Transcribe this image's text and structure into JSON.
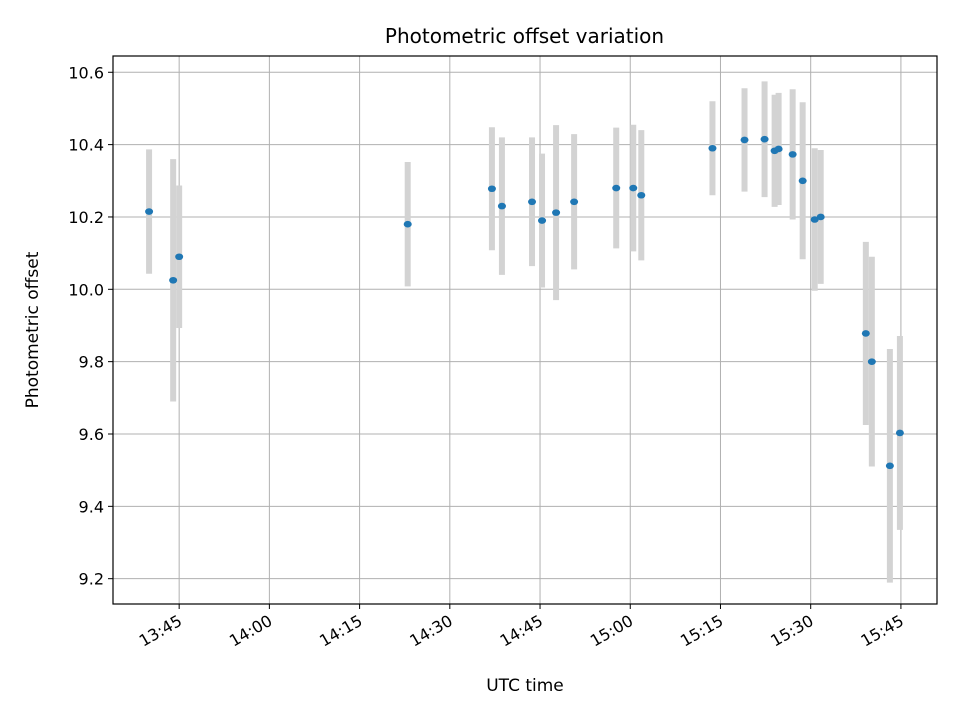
{
  "chart_data": {
    "type": "scatter",
    "title": "Photometric offset variation",
    "xlabel": "UTC time",
    "ylabel": "Photometric offset",
    "grid": true,
    "xlim": [
      "13:34",
      "15:51"
    ],
    "ylim": [
      9.13,
      10.645
    ],
    "x_ticks": [
      "13:45",
      "14:00",
      "14:15",
      "14:30",
      "14:45",
      "15:00",
      "15:15",
      "15:30",
      "15:45"
    ],
    "y_ticks": [
      9.2,
      9.4,
      9.6,
      9.8,
      10.0,
      10.2,
      10.4,
      10.6
    ],
    "colors": {
      "point": "#1f77b4",
      "errorbar": "#d3d3d3",
      "grid": "#b0b0b0"
    },
    "points": [
      {
        "x": "13:40:00",
        "y": 10.215,
        "err": 0.172
      },
      {
        "x": "13:44:00",
        "y": 10.025,
        "err": 0.335
      },
      {
        "x": "13:45:00",
        "y": 10.09,
        "err": 0.197
      },
      {
        "x": "14:23:00",
        "y": 10.18,
        "err": 0.172
      },
      {
        "x": "14:37:00",
        "y": 10.278,
        "err": 0.17
      },
      {
        "x": "14:38:40",
        "y": 10.23,
        "err": 0.19
      },
      {
        "x": "14:43:40",
        "y": 10.242,
        "err": 0.178
      },
      {
        "x": "14:45:20",
        "y": 10.19,
        "err": 0.185
      },
      {
        "x": "14:47:40",
        "y": 10.212,
        "err": 0.242
      },
      {
        "x": "14:50:40",
        "y": 10.242,
        "err": 0.187
      },
      {
        "x": "14:57:40",
        "y": 10.28,
        "err": 0.167
      },
      {
        "x": "15:00:30",
        "y": 10.28,
        "err": 0.175
      },
      {
        "x": "15:01:50",
        "y": 10.26,
        "err": 0.18
      },
      {
        "x": "15:13:40",
        "y": 10.39,
        "err": 0.13
      },
      {
        "x": "15:19:00",
        "y": 10.413,
        "err": 0.143
      },
      {
        "x": "15:22:20",
        "y": 10.415,
        "err": 0.16
      },
      {
        "x": "15:24:00",
        "y": 10.383,
        "err": 0.155
      },
      {
        "x": "15:24:40",
        "y": 10.388,
        "err": 0.155
      },
      {
        "x": "15:27:00",
        "y": 10.373,
        "err": 0.18
      },
      {
        "x": "15:28:40",
        "y": 10.3,
        "err": 0.217
      },
      {
        "x": "15:30:40",
        "y": 10.193,
        "err": 0.197
      },
      {
        "x": "15:31:40",
        "y": 10.2,
        "err": 0.185
      },
      {
        "x": "15:39:10",
        "y": 9.878,
        "err": 0.253
      },
      {
        "x": "15:40:10",
        "y": 9.8,
        "err": 0.29
      },
      {
        "x": "15:43:10",
        "y": 9.512,
        "err": 0.323
      },
      {
        "x": "15:44:50",
        "y": 9.603,
        "err": 0.268
      }
    ]
  }
}
